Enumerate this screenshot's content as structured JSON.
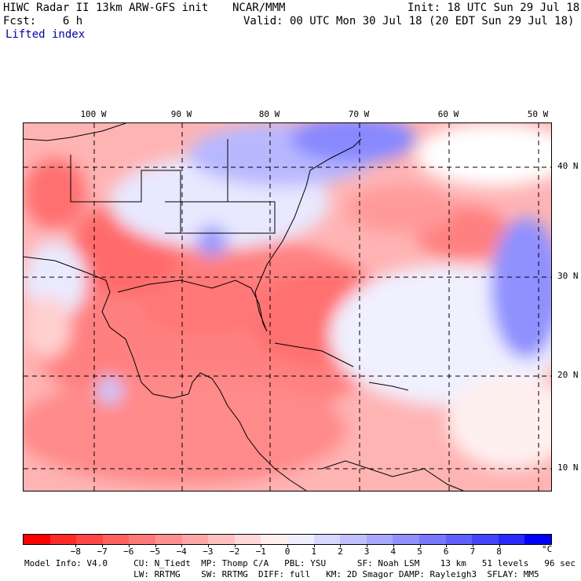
{
  "header": {
    "model": "HIWC Radar II 13km ARW-GFS init",
    "org": "NCAR/MMM",
    "init": "Init: 18 UTC Sun 29 Jul 18",
    "fcst": "Fcst:    6 h",
    "valid": "Valid: 00 UTC Mon 30 Jul 18 (20 EDT Sun 29 Jul 18)",
    "field": "Lifted index"
  },
  "map": {
    "lon_labels": [
      "100 W",
      "90 W",
      "80 W",
      "70 W",
      "60 W",
      "50 W"
    ],
    "lat_labels": [
      "40 N",
      "30 N",
      "20 N",
      "10 N"
    ]
  },
  "colorbar": {
    "unit": "°C",
    "labels": [
      "−8",
      "−7",
      "−6",
      "−5",
      "−4",
      "−3",
      "−2",
      "−1",
      "0",
      "1",
      "2",
      "3",
      "4",
      "5",
      "6",
      "7",
      "8"
    ],
    "colors": [
      "#ff0000",
      "#ff2a2a",
      "#ff4545",
      "#ff6060",
      "#ff7878",
      "#ff9090",
      "#ffa8a8",
      "#ffc0c0",
      "#ffd8d8",
      "#ffeeee",
      "#eeeeff",
      "#d8d8ff",
      "#c0c0ff",
      "#a8a8ff",
      "#9090ff",
      "#7878ff",
      "#6060ff",
      "#4545ff",
      "#2a2aff",
      "#0000ff"
    ]
  },
  "footer": {
    "line1": "Model Info: V4.0     CU: N_Tiedt  MP: Thomp C/A   PBL: YSU      SF: Noah LSM    13 km   51 levels   96 sec",
    "line2": "                     LW: RRTMG    SW: RRTMG  DIFF: full   KM: 2D Smagor DAMP: Rayleigh3  SFLAY: MM5"
  }
}
